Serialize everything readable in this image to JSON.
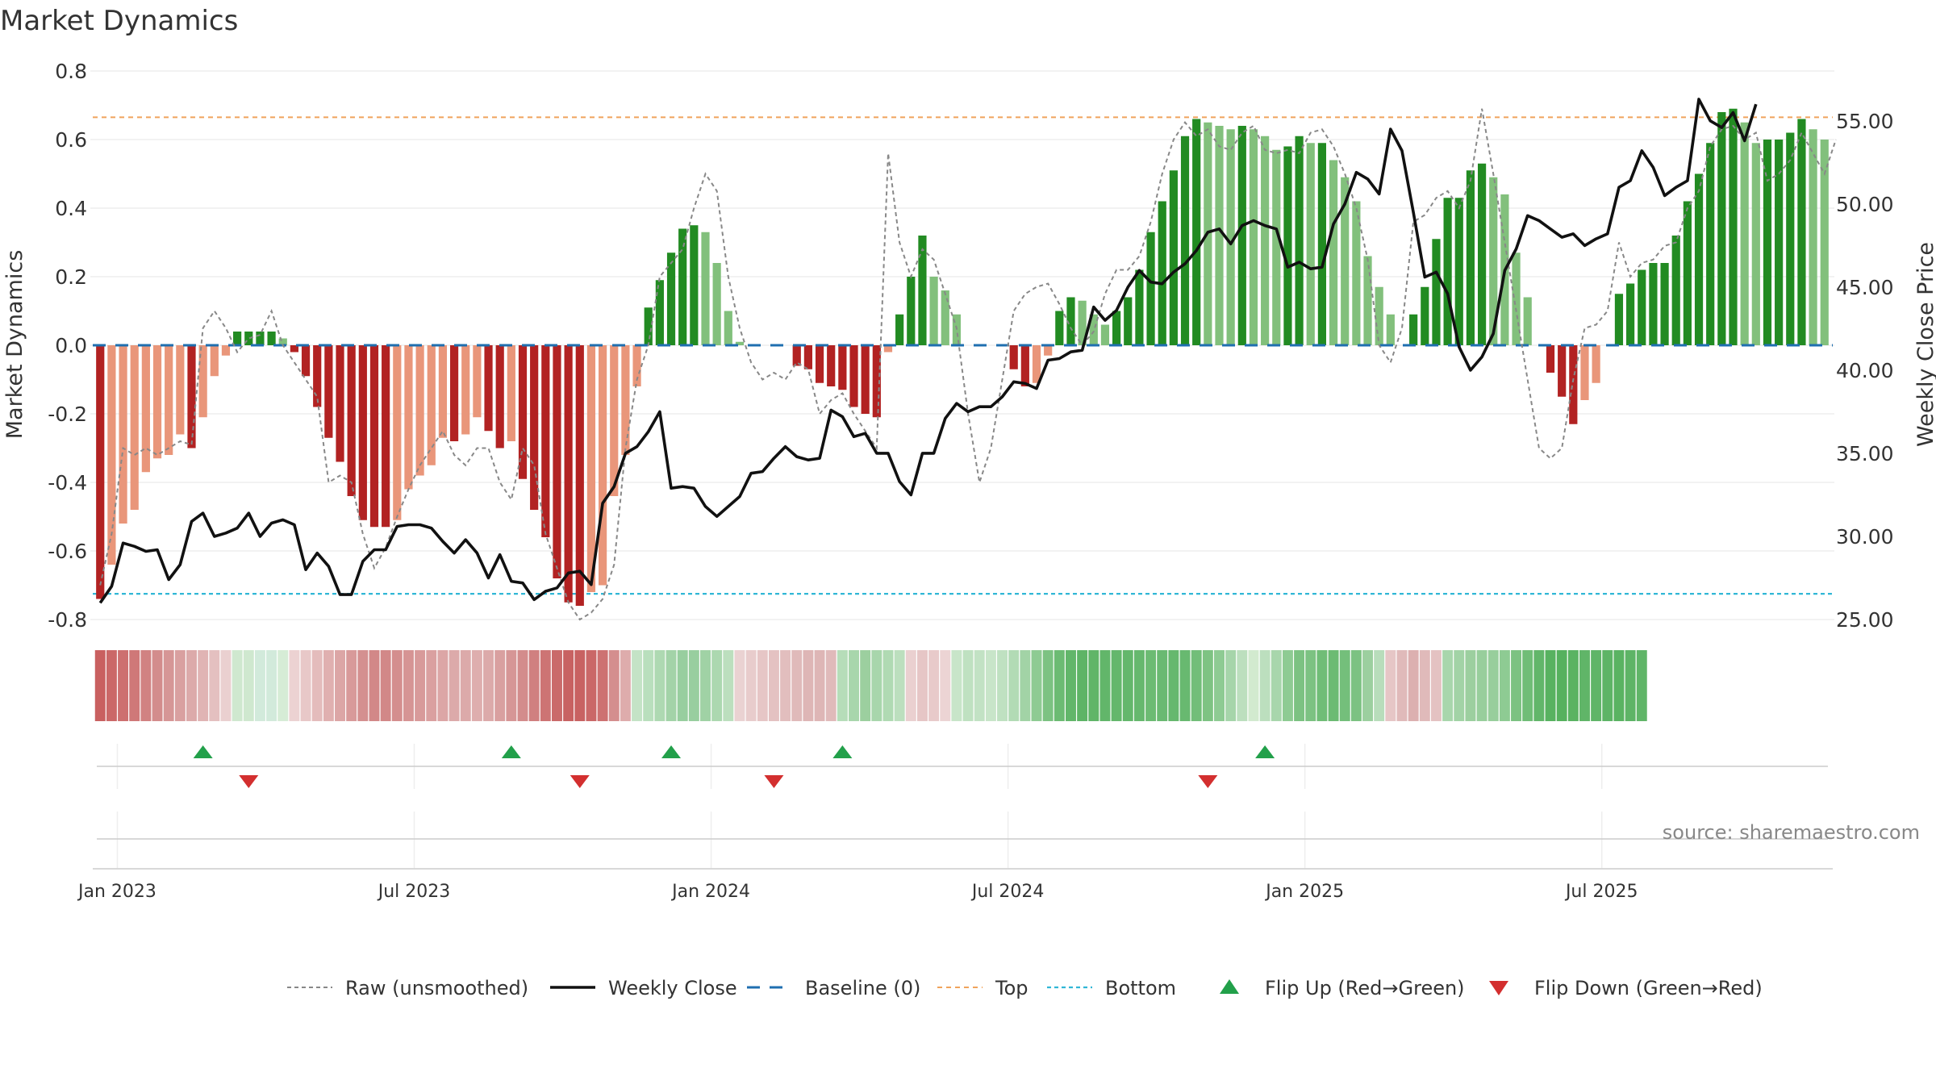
{
  "chart_data": {
    "type": "bar",
    "title": "Market Dynamics",
    "ylabel_left": "Market Dynamics",
    "ylabel_right": "Weekly Close Price",
    "source": "source: sharemaestro.com",
    "ylim_left": [
      -0.8,
      0.8
    ],
    "yticks_left": [
      -0.8,
      -0.6,
      -0.4,
      -0.2,
      0,
      0.2,
      0.4,
      0.6,
      0.8
    ],
    "ylim_right": [
      25.0,
      58.0
    ],
    "yticks_right": [
      25.0,
      30.0,
      35.0,
      40.0,
      45.0,
      50.0,
      55.0
    ],
    "x_ticks": [
      {
        "label": "Jan 2023",
        "week": 1.5
      },
      {
        "label": "Jul 2023",
        "week": 27.5
      },
      {
        "label": "Jan 2024",
        "week": 53.5
      },
      {
        "label": "Jul 2024",
        "week": 79.5
      },
      {
        "label": "Jan 2025",
        "week": 105.5
      },
      {
        "label": "Jul 2025",
        "week": 131.5
      }
    ],
    "top_line": 0.665,
    "bottom_line": -0.725,
    "baseline": 0,
    "bar_colors": {
      "strong_red": "#b22222",
      "weak_red": "#e9967a",
      "strong_green": "#228b22",
      "weak_green": "#82c07c"
    },
    "line_colors": {
      "raw": "#888888",
      "close": "#111111",
      "baseline": "#1f6fb0",
      "top": "#f0a35c",
      "bottom": "#31b7d6",
      "flip_up": "#22a04a",
      "flip_down": "#d32f2f"
    },
    "series": {
      "dynamics": [
        -0.74,
        -0.64,
        -0.52,
        -0.48,
        -0.37,
        -0.33,
        -0.32,
        -0.26,
        -0.3,
        -0.21,
        -0.09,
        -0.03,
        0.04,
        0.04,
        0.04,
        0.04,
        0.02,
        -0.02,
        -0.09,
        -0.18,
        -0.27,
        -0.34,
        -0.44,
        -0.51,
        -0.53,
        -0.53,
        -0.51,
        -0.42,
        -0.38,
        -0.35,
        -0.27,
        -0.28,
        -0.26,
        -0.21,
        -0.25,
        -0.3,
        -0.28,
        -0.39,
        -0.48,
        -0.56,
        -0.68,
        -0.75,
        -0.76,
        -0.72,
        -0.7,
        -0.44,
        -0.32,
        -0.12,
        0.11,
        0.19,
        0.27,
        0.34,
        0.35,
        0.33,
        0.24,
        0.1,
        0.01,
        0,
        0,
        0,
        0,
        -0.06,
        -0.07,
        -0.11,
        -0.12,
        -0.13,
        -0.18,
        -0.2,
        -0.21,
        -0.02,
        0.09,
        0.2,
        0.32,
        0.2,
        0.16,
        0.09,
        0,
        0,
        0,
        0,
        -0.07,
        -0.12,
        -0.11,
        -0.03,
        0.1,
        0.14,
        0.13,
        0.09,
        0.06,
        0.1,
        0.14,
        0.22,
        0.33,
        0.42,
        0.51,
        0.61,
        0.66,
        0.65,
        0.64,
        0.63,
        0.64,
        0.63,
        0.61,
        0.57,
        0.58,
        0.61,
        0.59,
        0.59,
        0.54,
        0.49,
        0.42,
        0.26,
        0.17,
        0.09,
        0,
        0.09,
        0.17,
        0.31,
        0.43,
        0.43,
        0.51,
        0.53,
        0.49,
        0.44,
        0.27,
        0.14,
        0,
        -0.08,
        -0.15,
        -0.23,
        -0.16,
        -0.11,
        0,
        0.15,
        0.18,
        0.22,
        0.24,
        0.24,
        0.32,
        0.42,
        0.5,
        0.59,
        0.68,
        0.69,
        0.65,
        0.59,
        0.6,
        0.6,
        0.62,
        0.66,
        0.63,
        0.6
      ],
      "raw": [
        -0.7,
        -0.55,
        -0.3,
        -0.32,
        -0.3,
        -0.32,
        -0.3,
        -0.28,
        -0.29,
        0.05,
        0.1,
        0.05,
        -0.02,
        0.02,
        0.03,
        0.1,
        0,
        -0.05,
        -0.1,
        -0.15,
        -0.4,
        -0.38,
        -0.4,
        -0.55,
        -0.65,
        -0.59,
        -0.5,
        -0.42,
        -0.35,
        -0.3,
        -0.25,
        -0.32,
        -0.35,
        -0.3,
        -0.3,
        -0.4,
        -0.45,
        -0.3,
        -0.35,
        -0.55,
        -0.65,
        -0.75,
        -0.8,
        -0.78,
        -0.74,
        -0.64,
        -0.3,
        -0.1,
        0,
        0.2,
        0.24,
        0.28,
        0.4,
        0.5,
        0.45,
        0.2,
        0.05,
        -0.05,
        -0.1,
        -0.08,
        -0.1,
        -0.05,
        -0.07,
        -0.2,
        -0.16,
        -0.14,
        -0.2,
        -0.25,
        -0.3,
        0.56,
        0.3,
        0.2,
        0.28,
        0.25,
        0.15,
        0.05,
        -0.2,
        -0.4,
        -0.3,
        -0.1,
        0.1,
        0.15,
        0.17,
        0.18,
        0.12,
        0.05,
        0,
        0.04,
        0.15,
        0.22,
        0.22,
        0.26,
        0.36,
        0.5,
        0.6,
        0.65,
        0.61,
        0.63,
        0.58,
        0.57,
        0.62,
        0.64,
        0.57,
        0.56,
        0.57,
        0.56,
        0.62,
        0.63,
        0.58,
        0.5,
        0.4,
        0.25,
        0,
        -0.05,
        0.05,
        0.36,
        0.38,
        0.43,
        0.45,
        0.4,
        0.48,
        0.69,
        0.5,
        0.3,
        0.1,
        -0.1,
        -0.3,
        -0.33,
        -0.3,
        -0.1,
        0.05,
        0.06,
        0.1,
        0.3,
        0.2,
        0.24,
        0.25,
        0.29,
        0.3,
        0.4,
        0.45,
        0.58,
        0.63,
        0.64,
        0.6,
        0.62,
        0.48,
        0.5,
        0.54,
        0.62,
        0.56,
        0.5,
        0.6
      ],
      "close": [
        26.0,
        27.0,
        29.6,
        29.4,
        29.1,
        29.2,
        27.4,
        28.3,
        30.9,
        31.4,
        30.0,
        30.2,
        30.5,
        31.4,
        30.0,
        30.8,
        31.0,
        30.7,
        28.0,
        29.0,
        28.2,
        26.5,
        26.5,
        28.5,
        29.2,
        29.2,
        30.6,
        30.7,
        30.7,
        30.5,
        29.7,
        29.0,
        29.8,
        29.0,
        27.5,
        28.9,
        27.3,
        27.2,
        26.2,
        26.7,
        26.9,
        27.8,
        27.9,
        27.1,
        32.0,
        33.0,
        35.0,
        35.4,
        36.3,
        37.5,
        32.9,
        33.0,
        32.9,
        31.8,
        31.2,
        31.8,
        32.4,
        33.8,
        33.9,
        34.7,
        35.4,
        34.8,
        34.6,
        34.7,
        37.6,
        37.2,
        36.0,
        36.2,
        35.0,
        35.0,
        33.3,
        32.5,
        35.0,
        35.0,
        37.1,
        38.0,
        37.5,
        37.8,
        37.8,
        38.4,
        39.3,
        39.2,
        38.9,
        40.6,
        40.7,
        41.1,
        41.2,
        43.8,
        43.0,
        43.6,
        45.0,
        46.0,
        45.3,
        45.2,
        45.9,
        46.4,
        47.2,
        48.3,
        48.5,
        47.6,
        48.7,
        49.0,
        48.7,
        48.5,
        46.2,
        46.5,
        46.1,
        46.2,
        48.8,
        50.0,
        51.9,
        51.5,
        50.6,
        54.5,
        53.2,
        49.5,
        45.6,
        45.9,
        44.6,
        41.4,
        40.0,
        40.8,
        42.2,
        46.0,
        47.3,
        49.3,
        49.0,
        48.5,
        48.0,
        48.2,
        47.5,
        47.9,
        48.2,
        51.0,
        51.4,
        53.2,
        52.2,
        50.5,
        51.0,
        51.4,
        56.3,
        55.0,
        54.6,
        55.5,
        53.8,
        56.0
      ]
    },
    "regime_strip": [
      {
        "i": 0,
        "c": "#c96060"
      },
      {
        "i": 1,
        "c": "#cb6868"
      },
      {
        "i": 2,
        "c": "#cd7070"
      },
      {
        "i": 3,
        "c": "#cf7878"
      },
      {
        "i": 4,
        "c": "#d18282"
      },
      {
        "i": 5,
        "c": "#d38c8c"
      },
      {
        "i": 6,
        "c": "#d69696"
      },
      {
        "i": 7,
        "c": "#d9a0a0"
      },
      {
        "i": 8,
        "c": "#dcaaaa"
      },
      {
        "i": 9,
        "c": "#e0b4b4"
      },
      {
        "i": 10,
        "c": "#e4c0c0"
      },
      {
        "i": 11,
        "c": "#ead0d0"
      },
      {
        "i": 12,
        "c": "#cfe8cf"
      },
      {
        "i": 13,
        "c": "#cfe8cf"
      },
      {
        "i": 14,
        "c": "#d2eadb"
      },
      {
        "i": 15,
        "c": "#d2eadb"
      },
      {
        "i": 16,
        "c": "#d6ecd6"
      },
      {
        "i": 17,
        "c": "#ecd2d2"
      },
      {
        "i": 18,
        "c": "#e8c8c8"
      },
      {
        "i": 19,
        "c": "#e4bcbc"
      },
      {
        "i": 20,
        "c": "#e0b0b0"
      },
      {
        "i": 21,
        "c": "#dca6a6"
      },
      {
        "i": 22,
        "c": "#d89a9a"
      },
      {
        "i": 23,
        "c": "#d49090"
      },
      {
        "i": 24,
        "c": "#d28888"
      },
      {
        "i": 25,
        "c": "#d28888"
      },
      {
        "i": 26,
        "c": "#d48e8e"
      },
      {
        "i": 27,
        "c": "#d69494"
      },
      {
        "i": 28,
        "c": "#d89a9a"
      },
      {
        "i": 29,
        "c": "#daa0a0"
      },
      {
        "i": 30,
        "c": "#dca6a6"
      },
      {
        "i": 31,
        "c": "#dcaaaa"
      },
      {
        "i": 32,
        "c": "#dcaaaa"
      },
      {
        "i": 33,
        "c": "#deaeae"
      },
      {
        "i": 34,
        "c": "#dcaaaa"
      },
      {
        "i": 35,
        "c": "#d9a0a0"
      },
      {
        "i": 36,
        "c": "#d69696"
      },
      {
        "i": 37,
        "c": "#d38c8c"
      },
      {
        "i": 38,
        "c": "#d08080"
      },
      {
        "i": 39,
        "c": "#cd7474"
      },
      {
        "i": 40,
        "c": "#ca6a6a"
      },
      {
        "i": 41,
        "c": "#c86262"
      },
      {
        "i": 42,
        "c": "#c86262"
      },
      {
        "i": 43,
        "c": "#ca6868"
      },
      {
        "i": 44,
        "c": "#cd7272"
      },
      {
        "i": 45,
        "c": "#d48e8e"
      },
      {
        "i": 46,
        "c": "#deacac"
      },
      {
        "i": 47,
        "c": "#c4e3c6"
      },
      {
        "i": 48,
        "c": "#b9dfbd"
      },
      {
        "i": 49,
        "c": "#aed9b2"
      },
      {
        "i": 50,
        "c": "#a3d3a8"
      },
      {
        "i": 51,
        "c": "#98ce9f"
      },
      {
        "i": 52,
        "c": "#98ce9f"
      },
      {
        "i": 53,
        "c": "#a0d2a5"
      },
      {
        "i": 54,
        "c": "#acd8b0"
      },
      {
        "i": 55,
        "c": "#bcdfbe"
      },
      {
        "i": 56,
        "c": "#ead2d2"
      },
      {
        "i": 57,
        "c": "#e8cccc"
      },
      {
        "i": 58,
        "c": "#e6c6c6"
      },
      {
        "i": 59,
        "c": "#e4c2c2"
      },
      {
        "i": 60,
        "c": "#e2bebe"
      },
      {
        "i": 61,
        "c": "#e0baba"
      },
      {
        "i": 62,
        "c": "#deb6b6"
      },
      {
        "i": 63,
        "c": "#deb6b6"
      },
      {
        "i": 64,
        "c": "#e0baba"
      },
      {
        "i": 65,
        "c": "#b6ddb9"
      },
      {
        "i": 66,
        "c": "#a8d6ac"
      },
      {
        "i": 67,
        "c": "#9ccf9f"
      },
      {
        "i": 68,
        "c": "#a8d6ac"
      },
      {
        "i": 69,
        "c": "#b0dab3"
      },
      {
        "i": 70,
        "c": "#bcdfbe"
      },
      {
        "i": 71,
        "c": "#ead0d0"
      },
      {
        "i": 72,
        "c": "#e6c6c6"
      },
      {
        "i": 73,
        "c": "#e8caca"
      },
      {
        "i": 74,
        "c": "#ecd4d4"
      },
      {
        "i": 75,
        "c": "#c8e5c9"
      },
      {
        "i": 76,
        "c": "#bfe1c1"
      },
      {
        "i": 77,
        "c": "#c2e2c4"
      },
      {
        "i": 78,
        "c": "#c8e5c9"
      },
      {
        "i": 79,
        "c": "#bfe1c1"
      },
      {
        "i": 80,
        "c": "#b2dbb5"
      },
      {
        "i": 81,
        "c": "#a2d3a6"
      },
      {
        "i": 82,
        "c": "#8ecb93"
      },
      {
        "i": 83,
        "c": "#7cc282"
      },
      {
        "i": 84,
        "c": "#6cbb73"
      },
      {
        "i": 85,
        "c": "#62b66a"
      },
      {
        "i": 86,
        "c": "#5eb466"
      },
      {
        "i": 87,
        "c": "#60b568"
      },
      {
        "i": 88,
        "c": "#62b66a"
      },
      {
        "i": 89,
        "c": "#64b76c"
      },
      {
        "i": 90,
        "c": "#64b76c"
      },
      {
        "i": 91,
        "c": "#66b86e"
      },
      {
        "i": 92,
        "c": "#6cbb73"
      },
      {
        "i": 93,
        "c": "#6ab972"
      },
      {
        "i": 94,
        "c": "#66b86e"
      },
      {
        "i": 95,
        "c": "#68b970"
      },
      {
        "i": 96,
        "c": "#72be79"
      },
      {
        "i": 97,
        "c": "#7ec383"
      },
      {
        "i": 98,
        "c": "#8ecb93"
      },
      {
        "i": 99,
        "c": "#a6d5aa"
      },
      {
        "i": 100,
        "c": "#bcdfbe"
      },
      {
        "i": 101,
        "c": "#d2eacf"
      },
      {
        "i": 102,
        "c": "#bcdfbe"
      },
      {
        "i": 103,
        "c": "#a8d6ac"
      },
      {
        "i": 104,
        "c": "#8ecb93"
      },
      {
        "i": 105,
        "c": "#7cc282"
      },
      {
        "i": 106,
        "c": "#7cc282"
      },
      {
        "i": 107,
        "c": "#70bd77"
      },
      {
        "i": 108,
        "c": "#6cbb73"
      },
      {
        "i": 109,
        "c": "#74bf7b"
      },
      {
        "i": 110,
        "c": "#7cc282"
      },
      {
        "i": 111,
        "c": "#9ccf9f"
      },
      {
        "i": 112,
        "c": "#b8ddbb"
      },
      {
        "i": 113,
        "c": "#e6c6c6"
      },
      {
        "i": 114,
        "c": "#e0baba"
      },
      {
        "i": 115,
        "c": "#dcb0b0"
      },
      {
        "i": 116,
        "c": "#e0baba"
      },
      {
        "i": 117,
        "c": "#e4c2c2"
      },
      {
        "i": 118,
        "c": "#a8d6ac"
      },
      {
        "i": 119,
        "c": "#a2d3a6"
      },
      {
        "i": 120,
        "c": "#9ccf9f"
      },
      {
        "i": 121,
        "c": "#98ce9c"
      },
      {
        "i": 122,
        "c": "#98ce9c"
      },
      {
        "i": 123,
        "c": "#8ecb93"
      },
      {
        "i": 124,
        "c": "#7cc282"
      },
      {
        "i": 125,
        "c": "#70bd77"
      },
      {
        "i": 126,
        "c": "#62b66a"
      },
      {
        "i": 127,
        "c": "#58b260"
      },
      {
        "i": 128,
        "c": "#56b15e"
      },
      {
        "i": 129,
        "c": "#5ab362"
      },
      {
        "i": 130,
        "c": "#60b568"
      },
      {
        "i": 131,
        "c": "#60b568"
      },
      {
        "i": 132,
        "c": "#5eb466"
      },
      {
        "i": 133,
        "c": "#5ab362"
      },
      {
        "i": 134,
        "c": "#5eb466"
      },
      {
        "i": 135,
        "c": "#60b568"
      }
    ],
    "flips": [
      {
        "week": 9,
        "dir": "up"
      },
      {
        "week": 13,
        "dir": "down"
      },
      {
        "week": 36,
        "dir": "up"
      },
      {
        "week": 42,
        "dir": "down"
      },
      {
        "week": 50,
        "dir": "up"
      },
      {
        "week": 59,
        "dir": "down"
      },
      {
        "week": 65,
        "dir": "up"
      },
      {
        "week": 97,
        "dir": "down"
      },
      {
        "week": 102,
        "dir": "up"
      }
    ],
    "legend": [
      {
        "key": "raw",
        "label": "Raw (unsmoothed)"
      },
      {
        "key": "close",
        "label": "Weekly Close"
      },
      {
        "key": "baseline",
        "label": "Baseline (0)"
      },
      {
        "key": "top",
        "label": "Top"
      },
      {
        "key": "bottom",
        "label": "Bottom"
      },
      {
        "key": "flip_up",
        "label": "Flip Up (Red→Green)"
      },
      {
        "key": "flip_down",
        "label": "Flip Down (Green→Red)"
      }
    ]
  }
}
